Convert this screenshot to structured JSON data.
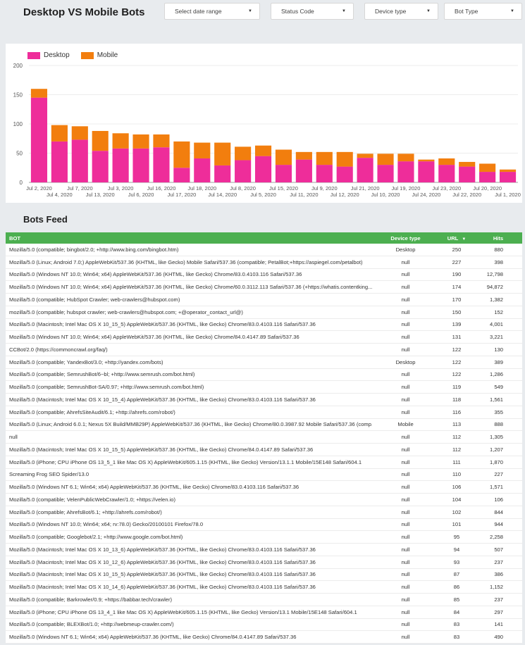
{
  "header": {
    "title": "Desktop VS Mobile Bots"
  },
  "filters": [
    {
      "label": "Select date range"
    },
    {
      "label": "Status Code"
    },
    {
      "label": "Device type"
    },
    {
      "label": "Bot Type"
    }
  ],
  "legend": {
    "desktop": "Desktop",
    "mobile": "Mobile"
  },
  "colors": {
    "desktop": "#ee2d9a",
    "mobile": "#f27e0e",
    "header_green": "#4caf50"
  },
  "chart_data": {
    "type": "bar",
    "stacked": true,
    "ylim": [
      0,
      200
    ],
    "yticks": [
      "0",
      "50",
      "100",
      "150",
      "200"
    ],
    "categories": [
      "Jul 2, 2020",
      "Jul 4, 2020",
      "Jul 7, 2020",
      "Jul 13, 2020",
      "Jul 3, 2020",
      "Jul 6, 2020",
      "Jul 16, 2020",
      "Jul 17, 2020",
      "Jul 18, 2020",
      "Jul 14, 2020",
      "Jul 8, 2020",
      "Jul 5, 2020",
      "Jul 15, 2020",
      "Jul 11, 2020",
      "Jul 9, 2020",
      "Jul 12, 2020",
      "Jul 21, 2020",
      "Jul 10, 2020",
      "Jul 19, 2020",
      "Jul 24, 2020",
      "Jul 23, 2020",
      "Jul 22, 2020",
      "Jul 20, 2020",
      "Jul 1, 2020"
    ],
    "series": [
      {
        "name": "Desktop",
        "values": [
          145,
          70,
          73,
          54,
          58,
          58,
          60,
          25,
          41,
          29,
          38,
          45,
          30,
          39,
          30,
          27,
          42,
          30,
          36,
          36,
          30,
          27,
          18,
          18
        ]
      },
      {
        "name": "Mobile",
        "values": [
          15,
          28,
          23,
          34,
          26,
          24,
          22,
          45,
          27,
          39,
          23,
          18,
          26,
          13,
          22,
          25,
          7,
          19,
          13,
          3,
          11,
          8,
          14,
          4
        ]
      }
    ],
    "legend_position": "top-left",
    "grid": true
  },
  "feed": {
    "title": "Bots Feed",
    "columns": {
      "bot": "BOT",
      "device": "Device type",
      "url": "URL",
      "url_sort": "▼",
      "hits": "Hits"
    },
    "rows": [
      [
        "Mozilla/5.0 (compatible; bingbot/2.0; +http://www.bing.com/bingbot.htm)",
        "Desktop",
        "250",
        "880"
      ],
      [
        "Mozilla/5.0 (Linux; Android 7.0;) AppleWebKit/537.36 (KHTML, like Gecko) Mobile Safari/537.36 (compatible; PetalBot;+https://aspiegel.com/petalbot)",
        "null",
        "227",
        "398"
      ],
      [
        "Mozilla/5.0 (Windows NT 10.0; Win64; x64) AppleWebKit/537.36 (KHTML, like Gecko) Chrome/83.0.4103.116 Safari/537.36",
        "null",
        "190",
        "12,798"
      ],
      [
        "Mozilla/5.0 (Windows NT 10.0; Win64; x64) AppleWebKit/537.36 (KHTML, like Gecko) Chrome/60.0.3112.113 Safari/537.36 (+https://whatis.contentking...",
        "null",
        "174",
        "94,872"
      ],
      [
        "Mozilla/5.0 (compatible; HubSpot Crawler; web-crawlers@hubspot.com)",
        "null",
        "170",
        "1,382"
      ],
      [
        "mozilla/5.0 (compatible; hubspot crawler; web-crawlers@hubspot.com; +@operator_contact_url@)",
        "null",
        "150",
        "152"
      ],
      [
        "Mozilla/5.0 (Macintosh; Intel Mac OS X 10_15_5) AppleWebKit/537.36 (KHTML, like Gecko) Chrome/83.0.4103.116 Safari/537.36",
        "null",
        "139",
        "4,001"
      ],
      [
        "Mozilla/5.0 (Windows NT 10.0; Win64; x64) AppleWebKit/537.36 (KHTML, like Gecko) Chrome/84.0.4147.89 Safari/537.36",
        "null",
        "131",
        "3,221"
      ],
      [
        "CCBot/2.0 (https://commoncrawl.org/faq/)",
        "null",
        "122",
        "130"
      ],
      [
        "Mozilla/5.0 (compatible; YandexBot/3.0; +http://yandex.com/bots)",
        "Desktop",
        "122",
        "389"
      ],
      [
        "Mozilla/5.0 (compatible; SemrushBot/6~bl; +http://www.semrush.com/bot.html)",
        "null",
        "122",
        "1,286"
      ],
      [
        "Mozilla/5.0 (compatible; SemrushBot-SA/0.97; +http://www.semrush.com/bot.html)",
        "null",
        "119",
        "549"
      ],
      [
        "Mozilla/5.0 (Macintosh; Intel Mac OS X 10_15_4) AppleWebKit/537.36 (KHTML, like Gecko) Chrome/83.0.4103.116 Safari/537.36",
        "null",
        "118",
        "1,561"
      ],
      [
        "Mozilla/5.0 (compatible; AhrefsSiteAudit/6.1; +http://ahrefs.com/robot/)",
        "null",
        "116",
        "355"
      ],
      [
        "Mozilla/5.0 (Linux; Android 6.0.1; Nexus 5X Build/MMB29P) AppleWebKit/537.36 (KHTML, like Gecko) Chrome/80.0.3987.92 Mobile Safari/537.36 (comp...",
        "Mobile",
        "113",
        "888"
      ],
      [
        "null",
        "null",
        "112",
        "1,305"
      ],
      [
        "Mozilla/5.0 (Macintosh; Intel Mac OS X 10_15_5) AppleWebKit/537.36 (KHTML, like Gecko) Chrome/84.0.4147.89 Safari/537.36",
        "null",
        "112",
        "1,207"
      ],
      [
        "Mozilla/5.0 (iPhone; CPU iPhone OS 13_5_1 like Mac OS X) AppleWebKit/605.1.15 (KHTML, like Gecko) Version/13.1.1 Mobile/15E148 Safari/604.1",
        "null",
        "111",
        "1,870"
      ],
      [
        "Screaming Frog SEO Spider/13.0",
        "null",
        "110",
        "227"
      ],
      [
        "Mozilla/5.0 (Windows NT 6.1; Win64; x64) AppleWebKit/537.36 (KHTML, like Gecko) Chrome/83.0.4103.116 Safari/537.36",
        "null",
        "106",
        "1,571"
      ],
      [
        "Mozilla/5.0 (compatible; VelenPublicWebCrawler/1.0; +https://velen.io)",
        "null",
        "104",
        "106"
      ],
      [
        "Mozilla/5.0 (compatible; AhrefsBot/6.1; +http://ahrefs.com/robot/)",
        "null",
        "102",
        "844"
      ],
      [
        "Mozilla/5.0 (Windows NT 10.0; Win64; x64; rv:78.0) Gecko/20100101 Firefox/78.0",
        "null",
        "101",
        "944"
      ],
      [
        "Mozilla/5.0 (compatible; Googlebot/2.1; +http://www.google.com/bot.html)",
        "null",
        "95",
        "2,258"
      ],
      [
        "Mozilla/5.0 (Macintosh; Intel Mac OS X 10_13_6) AppleWebKit/537.36 (KHTML, like Gecko) Chrome/83.0.4103.116 Safari/537.36",
        "null",
        "94",
        "507"
      ],
      [
        "Mozilla/5.0 (Macintosh; Intel Mac OS X 10_12_6) AppleWebKit/537.36 (KHTML, like Gecko) Chrome/83.0.4103.116 Safari/537.36",
        "null",
        "93",
        "237"
      ],
      [
        "Mozilla/5.0 (Macintosh; Intel Mac OS X 10_15_5) AppleWebKit/537.36 (KHTML, like Gecko) Chrome/83.0.4103.116 Safari/537.36",
        "null",
        "87",
        "386"
      ],
      [
        "Mozilla/5.0 (Macintosh; Intel Mac OS X 10_14_6) AppleWebKit/537.36 (KHTML, like Gecko) Chrome/83.0.4103.116 Safari/537.36",
        "null",
        "86",
        "1,152"
      ],
      [
        "Mozilla/5.0 (compatible; Barkrowler/0.9; +https://babbar.tech/crawler)",
        "null",
        "85",
        "237"
      ],
      [
        "Mozilla/5.0 (iPhone; CPU iPhone OS 13_4_1 like Mac OS X) AppleWebKit/605.1.15 (KHTML, like Gecko) Version/13.1 Mobile/15E148 Safari/604.1",
        "null",
        "84",
        "297"
      ],
      [
        "Mozilla/5.0 (compatible; BLEXBot/1.0; +http://webmeup-crawler.com/)",
        "null",
        "83",
        "141"
      ],
      [
        "Mozilla/5.0 (Windows NT 6.1; Win64; x64) AppleWebKit/537.36 (KHTML, like Gecko) Chrome/84.0.4147.89 Safari/537.36",
        "null",
        "83",
        "490"
      ]
    ]
  }
}
